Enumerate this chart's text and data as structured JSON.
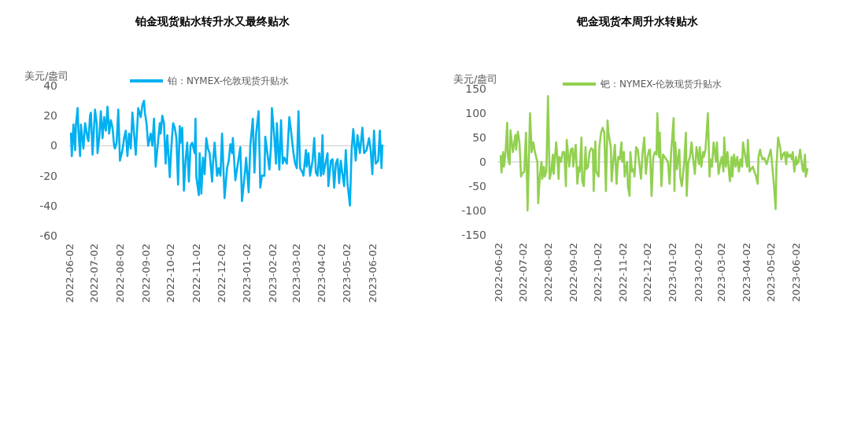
{
  "chart_data": [
    {
      "type": "line",
      "title": "铂金现货贴水转升水又最终贴水",
      "ylabel": "美元/盎司",
      "legend": "top",
      "grid": false,
      "ref_lines": [
        {
          "axis": "y",
          "value": 0,
          "color": "#d9d9d9"
        }
      ],
      "marker": "none",
      "line_style": "solid",
      "xlim": [
        "2022-06-01",
        "2023-06-18"
      ],
      "ylim": [
        -60,
        40
      ],
      "yticks": [
        -60,
        -40,
        -20,
        0,
        20,
        40
      ],
      "xticks": [
        "2022-06-02",
        "2022-07-02",
        "2022-08-02",
        "2022-09-02",
        "2022-10-02",
        "2022-11-02",
        "2022-12-02",
        "2023-01-02",
        "2023-02-02",
        "2023-03-02",
        "2023-04-02",
        "2023-05-02",
        "2023-06-02"
      ],
      "x": [
        "2022-06-04",
        "2022-06-05",
        "2022-06-07",
        "2022-06-09",
        "2022-06-10",
        "2022-06-12",
        "2022-06-13",
        "2022-06-15",
        "2022-06-16",
        "2022-06-19",
        "2022-06-21",
        "2022-06-24",
        "2022-06-25",
        "2022-06-27",
        "2022-06-28",
        "2022-06-30",
        "2022-07-03",
        "2022-07-05",
        "2022-07-06",
        "2022-07-08",
        "2022-07-10",
        "2022-07-12",
        "2022-07-14",
        "2022-07-16",
        "2022-07-18",
        "2022-07-20",
        "2022-07-22",
        "2022-07-24",
        "2022-07-26",
        "2022-07-27",
        "2022-07-29",
        "2022-07-31",
        "2022-08-02",
        "2022-08-05",
        "2022-08-07",
        "2022-08-09",
        "2022-08-11",
        "2022-08-13",
        "2022-08-15",
        "2022-08-17",
        "2022-08-19",
        "2022-08-21",
        "2022-08-24",
        "2022-08-27",
        "2022-08-29",
        "2022-08-31",
        "2022-09-01",
        "2022-09-03",
        "2022-09-05",
        "2022-09-08",
        "2022-09-10",
        "2022-09-12",
        "2022-09-14",
        "2022-09-19",
        "2022-09-20",
        "2022-09-22",
        "2022-09-24",
        "2022-09-26",
        "2022-09-28",
        "2022-10-01",
        "2022-10-03",
        "2022-10-05",
        "2022-10-07",
        "2022-10-09",
        "2022-10-11",
        "2022-10-13",
        "2022-10-14",
        "2022-10-16",
        "2022-10-18",
        "2022-10-20",
        "2022-10-22",
        "2022-10-24",
        "2022-10-26",
        "2022-10-28",
        "2022-10-31",
        "2022-11-01",
        "2022-11-02",
        "2022-11-05",
        "2022-11-06",
        "2022-11-08",
        "2022-11-10",
        "2022-11-12",
        "2022-11-14",
        "2022-11-16",
        "2022-11-18",
        "2022-11-21",
        "2022-11-22",
        "2022-11-24",
        "2022-11-27",
        "2022-11-29",
        "2022-12-01",
        "2022-12-03",
        "2022-12-06",
        "2022-12-09",
        "2022-12-11",
        "2022-12-13",
        "2022-12-15",
        "2022-12-16",
        "2022-12-19",
        "2022-12-25",
        "2022-12-27",
        "2022-12-31",
        "2023-01-01",
        "2023-01-04",
        "2023-01-06",
        "2023-01-09",
        "2023-01-11",
        "2023-01-13",
        "2023-01-16",
        "2023-01-18",
        "2023-01-20",
        "2023-01-23",
        "2023-01-24",
        "2023-01-27",
        "2023-01-29",
        "2023-01-31",
        "2023-02-01",
        "2023-02-04",
        "2023-02-06",
        "2023-02-07",
        "2023-02-10",
        "2023-02-12",
        "2023-02-14",
        "2023-02-16",
        "2023-02-19",
        "2023-02-22",
        "2023-02-24",
        "2023-02-27",
        "2023-03-01",
        "2023-03-03",
        "2023-03-05",
        "2023-03-07",
        "2023-03-10",
        "2023-03-11",
        "2023-03-14",
        "2023-03-15",
        "2023-03-17",
        "2023-03-19",
        "2023-03-22",
        "2023-03-24",
        "2023-03-26",
        "2023-03-28",
        "2023-03-30",
        "2023-04-01",
        "2023-04-03",
        "2023-04-04",
        "2023-04-09",
        "2023-04-10",
        "2023-04-13",
        "2023-04-15",
        "2023-04-17",
        "2023-04-19",
        "2023-04-21",
        "2023-04-23",
        "2023-04-25",
        "2023-04-26",
        "2023-04-29",
        "2023-05-01",
        "2023-05-03",
        "2023-05-06",
        "2023-05-08",
        "2023-05-10",
        "2023-05-13",
        "2023-05-15",
        "2023-05-18",
        "2023-05-21",
        "2023-05-23",
        "2023-05-26",
        "2023-05-29",
        "2023-05-31",
        "2023-06-02",
        "2023-06-04",
        "2023-06-06",
        "2023-06-09",
        "2023-06-11",
        "2023-06-13",
        "2023-06-14"
      ],
      "series": [
        {
          "name": "铂：NYMEX-伦敦现货升贴水",
          "color": "#00b0f0",
          "values": [
            8,
            -7,
            14,
            -3,
            14,
            25,
            10,
            -7,
            14,
            -2,
            15,
            5,
            3,
            20,
            22,
            -6,
            24,
            15,
            -5,
            5,
            23,
            5,
            19,
            10,
            26,
            8,
            17,
            12,
            0,
            -2,
            2,
            24,
            -10,
            -3,
            5,
            10,
            -7,
            8,
            -2,
            22,
            8,
            -6,
            25,
            19,
            27,
            30,
            22,
            15,
            0,
            8,
            0,
            18,
            -14,
            15,
            8,
            20,
            15,
            -12,
            7,
            -21,
            0,
            15,
            12,
            5,
            -26,
            13,
            2,
            12,
            -30,
            -10,
            2,
            -24,
            0,
            2,
            -5,
            18,
            -21,
            -33,
            -5,
            -32,
            -8,
            -19,
            5,
            -2,
            -5,
            -24,
            -12,
            2,
            -20,
            -15,
            -20,
            8,
            -35,
            -15,
            -10,
            1,
            -5,
            5,
            -23,
            -1,
            -37,
            -15,
            -8,
            -31,
            0,
            18,
            -18,
            8,
            23,
            -28,
            -20,
            -20,
            6,
            -7,
            -16,
            0,
            25,
            5,
            -12,
            15,
            -16,
            17,
            -12,
            -8,
            -12,
            19,
            10,
            -5,
            -12,
            -15,
            23,
            -15,
            -18,
            -20,
            -3,
            -14,
            -5,
            -20,
            -10,
            5,
            -18,
            -20,
            -5,
            -20,
            7,
            -19,
            -5,
            -27,
            -10,
            -9,
            -28,
            -12,
            -9,
            -25,
            -10,
            -15,
            -27,
            -3,
            -25,
            -40,
            -3,
            11,
            -10,
            7,
            -5,
            12,
            -5,
            -3,
            5,
            -3,
            -19,
            10,
            -12,
            -10,
            10,
            -15,
            0
          ]
        }
      ]
    },
    {
      "type": "line",
      "title": "钯金现货本周升水转贴水",
      "ylabel": "美元/盎司",
      "legend": "top",
      "grid": false,
      "ref_lines": [
        {
          "axis": "y",
          "value": 0,
          "color": "#d9d9d9"
        }
      ],
      "marker": "none",
      "line_style": "solid",
      "xlim": [
        "2022-06-01",
        "2023-06-18"
      ],
      "ylim": [
        -150,
        150
      ],
      "yticks": [
        -150,
        -100,
        -50,
        0,
        50,
        100,
        150
      ],
      "xticks": [
        "2022-06-02",
        "2022-07-02",
        "2022-08-02",
        "2022-09-02",
        "2022-10-02",
        "2022-11-02",
        "2022-12-02",
        "2023-01-02",
        "2023-02-02",
        "2023-03-02",
        "2023-04-02",
        "2023-05-02",
        "2023-06-02"
      ],
      "x": [
        "2022-06-05",
        "2022-06-06",
        "2022-06-08",
        "2022-06-09",
        "2022-06-11",
        "2022-06-13",
        "2022-06-14",
        "2022-06-16",
        "2022-06-17",
        "2022-06-20",
        "2022-06-23",
        "2022-06-24",
        "2022-06-25",
        "2022-06-26",
        "2022-06-28",
        "2022-06-30",
        "2022-07-01",
        "2022-07-04",
        "2022-07-06",
        "2022-07-08",
        "2022-07-09",
        "2022-07-11",
        "2022-07-13",
        "2022-07-15",
        "2022-07-17",
        "2022-07-20",
        "2022-07-21",
        "2022-07-23",
        "2022-07-25",
        "2022-07-26",
        "2022-07-28",
        "2022-07-29",
        "2022-07-31",
        "2022-08-02",
        "2022-08-04",
        "2022-08-06",
        "2022-08-08",
        "2022-08-09",
        "2022-08-12",
        "2022-08-13",
        "2022-08-15",
        "2022-08-16",
        "2022-08-18",
        "2022-08-20",
        "2022-08-22",
        "2022-08-24",
        "2022-08-25",
        "2022-08-28",
        "2022-08-30",
        "2022-09-01",
        "2022-09-02",
        "2022-09-05",
        "2022-09-07",
        "2022-09-09",
        "2022-09-10",
        "2022-09-12",
        "2022-09-13",
        "2022-09-15",
        "2022-09-17",
        "2022-09-18",
        "2022-09-20",
        "2022-09-22",
        "2022-09-24",
        "2022-09-26",
        "2022-09-27",
        "2022-09-29",
        "2022-09-30",
        "2022-10-03",
        "2022-10-04",
        "2022-10-06",
        "2022-10-08",
        "2022-10-10",
        "2022-10-12",
        "2022-10-14",
        "2022-10-15",
        "2022-10-18",
        "2022-10-19",
        "2022-10-22",
        "2022-10-23",
        "2022-10-25",
        "2022-10-27",
        "2022-10-29",
        "2022-10-31",
        "2022-11-01",
        "2022-11-03",
        "2022-11-04",
        "2022-11-07",
        "2022-11-08",
        "2022-11-10",
        "2022-11-11",
        "2022-11-13",
        "2022-11-15",
        "2022-11-16",
        "2022-11-18",
        "2022-11-20",
        "2022-11-21",
        "2022-11-24",
        "2022-11-26",
        "2022-11-28",
        "2022-11-30",
        "2022-12-02",
        "2022-12-04",
        "2022-12-05",
        "2022-12-07",
        "2022-12-09",
        "2022-12-11",
        "2022-12-13",
        "2022-12-14",
        "2022-12-16",
        "2022-12-17",
        "2022-12-19",
        "2022-12-21",
        "2022-12-27",
        "2022-12-29",
        "2022-12-31",
        "2023-01-03",
        "2023-01-04",
        "2023-01-05",
        "2023-01-07",
        "2023-01-08",
        "2023-01-10",
        "2023-01-11",
        "2023-01-13",
        "2023-01-16",
        "2023-01-18",
        "2023-01-19",
        "2023-01-21",
        "2023-01-23",
        "2023-01-25",
        "2023-01-26",
        "2023-01-29",
        "2023-01-31",
        "2023-02-01",
        "2023-02-03",
        "2023-02-04",
        "2023-02-06",
        "2023-02-08",
        "2023-02-09",
        "2023-02-11",
        "2023-02-14",
        "2023-02-16",
        "2023-02-17",
        "2023-02-19",
        "2023-02-21",
        "2023-02-24",
        "2023-02-25",
        "2023-02-27",
        "2023-03-01",
        "2023-03-03",
        "2023-03-05",
        "2023-03-06",
        "2023-03-08",
        "2023-03-10",
        "2023-03-12",
        "2023-03-13",
        "2023-03-15",
        "2023-03-16",
        "2023-03-18",
        "2023-03-20",
        "2023-03-22",
        "2023-03-24",
        "2023-03-26",
        "2023-03-28",
        "2023-03-29",
        "2023-03-31",
        "2023-04-03",
        "2023-04-04",
        "2023-04-06",
        "2023-04-10",
        "2023-04-12",
        "2023-04-14",
        "2023-04-16",
        "2023-04-17",
        "2023-04-19",
        "2023-04-20",
        "2023-04-22",
        "2023-04-24",
        "2023-04-27",
        "2023-05-02",
        "2023-05-04",
        "2023-05-06",
        "2023-05-08",
        "2023-05-09",
        "2023-05-11",
        "2023-05-14",
        "2023-05-15",
        "2023-05-17",
        "2023-05-19",
        "2023-05-21",
        "2023-05-22",
        "2023-05-24",
        "2023-05-26",
        "2023-05-28",
        "2023-05-29",
        "2023-05-31",
        "2023-06-02",
        "2023-06-03",
        "2023-06-05",
        "2023-06-07",
        "2023-06-10",
        "2023-06-11",
        "2023-06-13",
        "2023-06-14",
        "2023-06-16"
      ],
      "series": [
        {
          "name": "钯：NYMEX-伦敦现货升贴水",
          "color": "#92d050",
          "values": [
            12,
            -22,
            20,
            -10,
            20,
            80,
            10,
            -5,
            65,
            20,
            55,
            25,
            45,
            62,
            40,
            -30,
            -25,
            -20,
            60,
            -100,
            -30,
            100,
            20,
            40,
            20,
            0,
            -85,
            -30,
            0,
            -35,
            -10,
            -30,
            -20,
            135,
            -35,
            -20,
            15,
            -25,
            40,
            20,
            -35,
            10,
            0,
            20,
            20,
            -50,
            45,
            -10,
            25,
            28,
            -10,
            35,
            -45,
            -10,
            -20,
            50,
            -40,
            -50,
            30,
            -15,
            -10,
            20,
            28,
            25,
            -60,
            42,
            -20,
            -30,
            30,
            60,
            70,
            60,
            -60,
            85,
            60,
            30,
            -40,
            20,
            35,
            -45,
            10,
            5,
            40,
            0,
            20,
            -30,
            0,
            -50,
            -70,
            20,
            -20,
            -15,
            -30,
            30,
            25,
            10,
            -35,
            20,
            50,
            -25,
            10,
            25,
            25,
            -70,
            10,
            20,
            15,
            100,
            10,
            60,
            -50,
            15,
            0,
            -45,
            20,
            90,
            -60,
            40,
            -15,
            0,
            25,
            -30,
            -50,
            0,
            60,
            -70,
            0,
            10,
            40,
            20,
            -25,
            30,
            20,
            -5,
            30,
            -10,
            20,
            10,
            25,
            100,
            -30,
            5,
            -10,
            40,
            0,
            40,
            -25,
            -5,
            10,
            -20,
            50,
            -10,
            20,
            -25,
            -40,
            10,
            -30,
            15,
            -10,
            10,
            -20,
            5,
            -10,
            40,
            20,
            -10,
            45,
            -20,
            -10,
            -20,
            -30,
            -45,
            10,
            25,
            15,
            5,
            8,
            -5,
            25,
            -10,
            -50,
            -97,
            -10,
            50,
            25,
            5,
            15,
            20,
            -5,
            20,
            10,
            15,
            5,
            20,
            -20,
            10,
            -5,
            0,
            25,
            -15,
            -20,
            15,
            -30,
            -15
          ]
        }
      ]
    }
  ]
}
